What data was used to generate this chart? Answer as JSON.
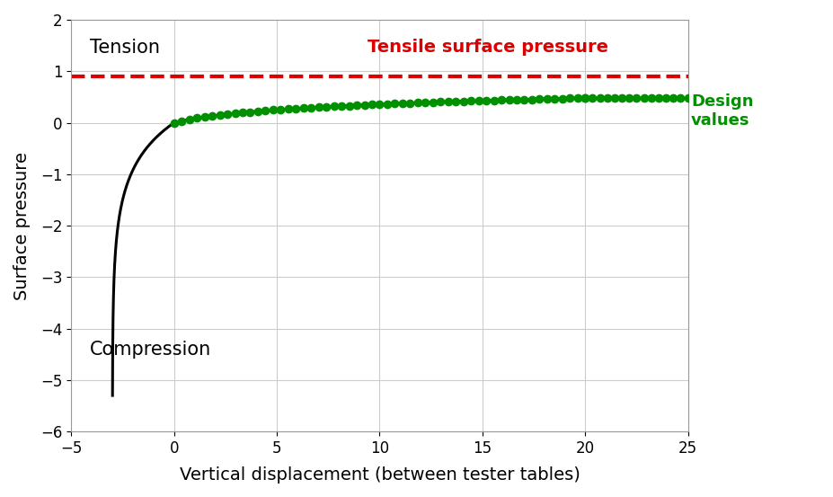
{
  "title": "",
  "xlabel": "Vertical displacement (between tester tables)",
  "ylabel": "Surface pressure",
  "xlim": [
    -5,
    25
  ],
  "ylim": [
    -6,
    2
  ],
  "xticks": [
    -5,
    0,
    5,
    10,
    15,
    20,
    25
  ],
  "yticks": [
    -6,
    -5,
    -4,
    -3,
    -2,
    -1,
    0,
    1,
    2
  ],
  "tensile_pressure_y": 0.9,
  "tensile_label": "Tensile surface pressure",
  "design_label": "Design\nvalues",
  "tension_label": "Tension",
  "compression_label": "Compression",
  "curve_color": "#000000",
  "green_color": "#009000",
  "red_color": "#dd0000",
  "background_color": "#ffffff",
  "grid_color": "#cccccc",
  "curve_linewidth": 2.2,
  "green_dot_size": 6,
  "red_linewidth": 3.0
}
